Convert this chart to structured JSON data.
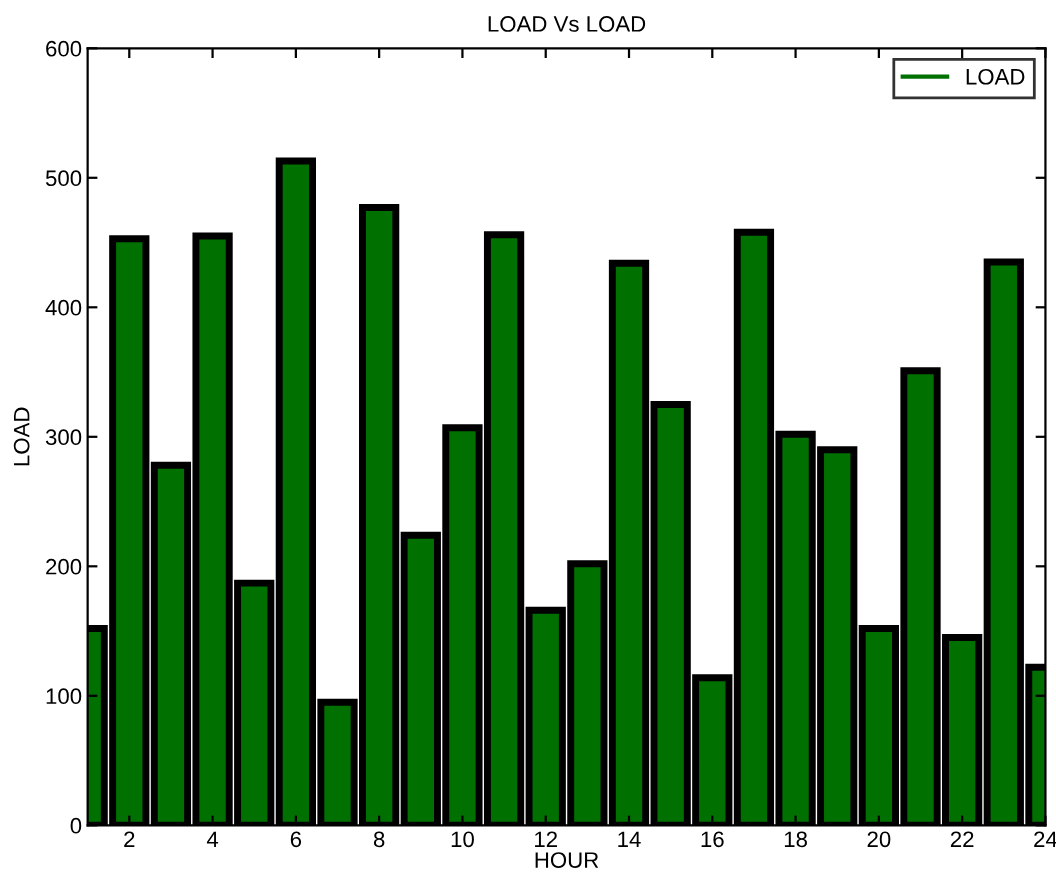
{
  "chart_data": {
    "type": "bar",
    "title": "LOAD Vs LOAD",
    "xlabel": "HOUR",
    "ylabel": "LOAD",
    "x": [
      1,
      2,
      3,
      4,
      5,
      6,
      7,
      8,
      9,
      10,
      11,
      12,
      13,
      14,
      15,
      16,
      17,
      18,
      19,
      20,
      21,
      22,
      23,
      24
    ],
    "series": [
      {
        "name": "LOAD",
        "color": "#007000",
        "values": [
          152,
          453,
          278,
          455,
          187,
          513,
          95,
          477,
          224,
          307,
          456,
          166,
          202,
          434,
          325,
          114,
          458,
          302,
          290,
          152,
          351,
          145,
          435,
          122
        ]
      }
    ],
    "xlim": [
      1,
      24
    ],
    "xticks": [
      2,
      4,
      6,
      8,
      10,
      12,
      14,
      16,
      18,
      20,
      22,
      24
    ],
    "ylim": [
      0,
      600
    ],
    "yticks": [
      0,
      100,
      200,
      300,
      400,
      500,
      600
    ],
    "legend": "top right"
  }
}
